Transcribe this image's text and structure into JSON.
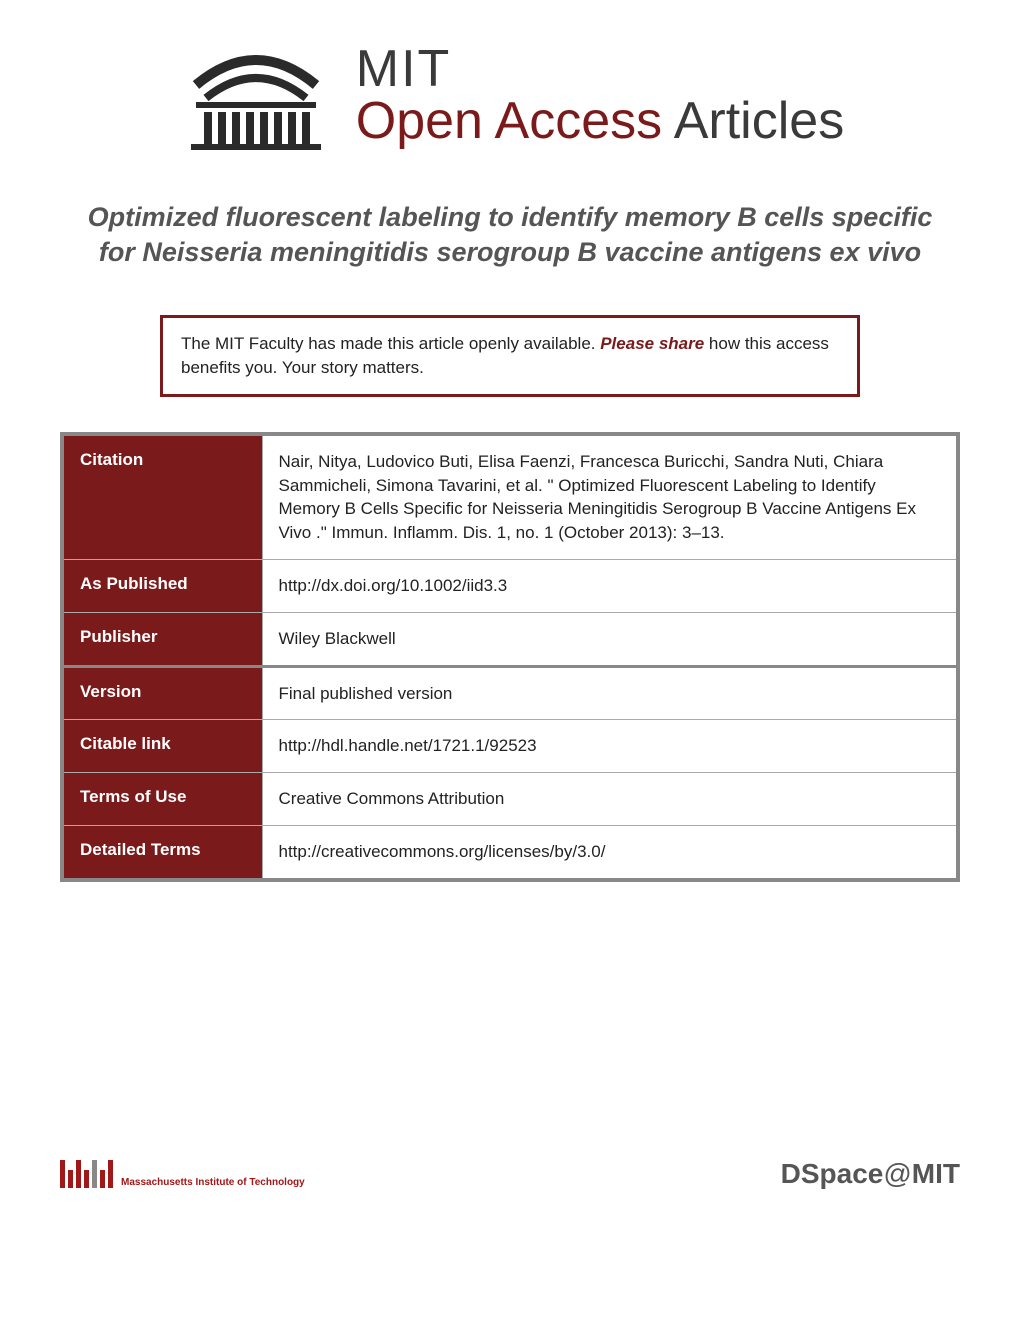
{
  "logo": {
    "mit": "MIT",
    "open_access": "Open Access",
    "articles": " Articles"
  },
  "article_title": "Optimized fluorescent labeling to identify memory B cells specific for Neisseria meningitidis serogroup B vaccine antigens ex vivo",
  "share_box": {
    "prefix": "The MIT Faculty has made this article openly available. ",
    "please_share": "Please share",
    "suffix": " how this access benefits you. Your story matters."
  },
  "metadata": {
    "rows": [
      {
        "label": "Citation",
        "value": "Nair, Nitya, Ludovico Buti, Elisa Faenzi, Francesca Buricchi, Sandra Nuti, Chiara Sammicheli, Simona Tavarini, et al. \" Optimized Fluorescent Labeling to Identify Memory B Cells Specific for Neisseria Meningitidis Serogroup B Vaccine Antigens Ex Vivo .\" Immun. Inflamm. Dis. 1, no. 1 (October 2013): 3–13.",
        "group_start": false
      },
      {
        "label": "As Published",
        "value": "http://dx.doi.org/10.1002/iid3.3",
        "group_start": false
      },
      {
        "label": "Publisher",
        "value": "Wiley Blackwell",
        "group_start": false
      },
      {
        "label": "Version",
        "value": "Final published version",
        "group_start": true
      },
      {
        "label": "Citable link",
        "value": "http://hdl.handle.net/1721.1/92523",
        "group_start": false
      },
      {
        "label": "Terms of Use",
        "value": "Creative Commons Attribution",
        "group_start": false
      },
      {
        "label": "Detailed Terms",
        "value": "http://creativecommons.org/licenses/by/3.0/",
        "group_start": false
      }
    ]
  },
  "footer": {
    "mit_text": "Massachusetts Institute of Technology",
    "dspace": "DSpace@MIT"
  },
  "colors": {
    "dark_red": "#7a1a1a",
    "gray_text": "#555555",
    "border_gray": "#888888"
  }
}
